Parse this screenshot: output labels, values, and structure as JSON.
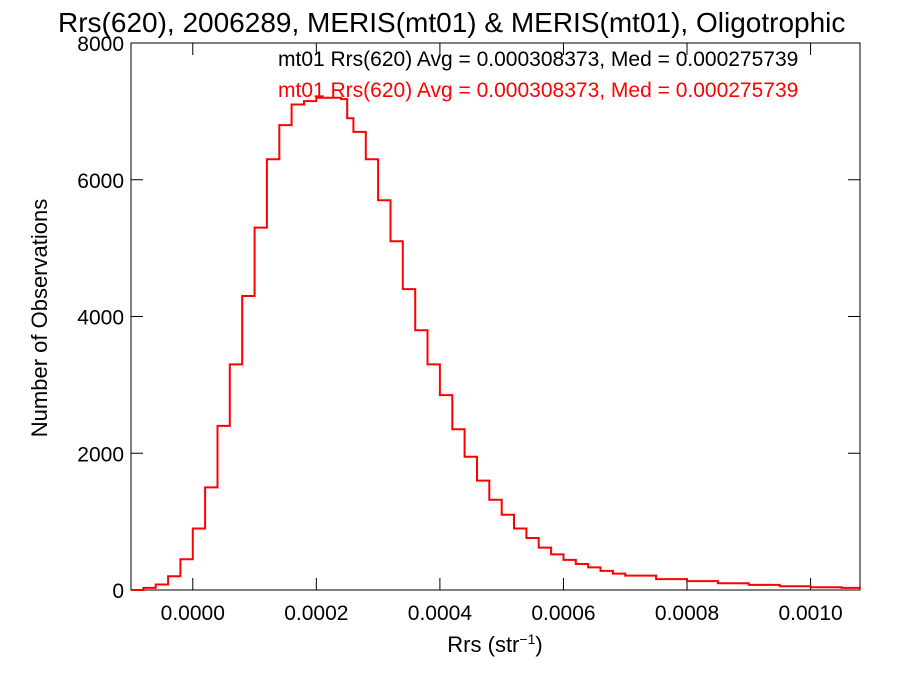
{
  "chart_data": {
    "type": "histogram",
    "title": "Rrs(620), 2006289, MERIS(mt01) & MERIS(mt01), Oligotrophic",
    "xlabel": "Rrs (str",
    "xlabel_sup": "−1",
    "xlabel_close": ")",
    "ylabel": "Number of Observations",
    "xlim": [
      -0.0001,
      0.00108
    ],
    "ylim": [
      0,
      8000
    ],
    "grid": false,
    "xticks": [
      0.0,
      0.0002,
      0.0004,
      0.0006,
      0.0008,
      0.001
    ],
    "xtick_labels": [
      "0.0000",
      "0.0002",
      "0.0004",
      "0.0006",
      "0.0008",
      "0.0010"
    ],
    "yticks": [
      0,
      2000,
      4000,
      6000,
      8000
    ],
    "ytick_labels": [
      "0",
      "2000",
      "4000",
      "6000",
      "8000"
    ],
    "legend_position": "top-right",
    "annotations": [
      {
        "text": "mt01 Rrs(620) Avg = 0.000308373, Med = 0.000275739",
        "color": "#000000"
      },
      {
        "text": "mt01 Rrs(620) Avg = 0.000308373, Med = 0.000275739",
        "color": "#ff0000"
      }
    ],
    "series": [
      {
        "color": "#ff0000",
        "x": [
          -0.0001,
          -8e-05,
          -6e-05,
          -4e-05,
          -2e-05,
          0.0,
          2e-05,
          4e-05,
          6e-05,
          8e-05,
          0.0001,
          0.00012,
          0.00014,
          0.00016,
          0.00018,
          0.0002,
          0.00022,
          0.00024,
          0.00025,
          0.00026,
          0.00028,
          0.0003,
          0.00032,
          0.00034,
          0.00036,
          0.00038,
          0.0004,
          0.00042,
          0.00044,
          0.00046,
          0.00048,
          0.0005,
          0.00052,
          0.00054,
          0.00056,
          0.00058,
          0.0006,
          0.00062,
          0.00064,
          0.00066,
          0.00068,
          0.0007,
          0.00075,
          0.0008,
          0.00085,
          0.0009,
          0.00095,
          0.001,
          0.00105,
          0.00108
        ],
        "y": [
          0,
          30,
          80,
          200,
          450,
          900,
          1500,
          2400,
          3300,
          4300,
          5300,
          6300,
          6800,
          7100,
          7150,
          7200,
          7200,
          7180,
          6900,
          6700,
          6300,
          5700,
          5100,
          4400,
          3800,
          3300,
          2850,
          2350,
          1950,
          1600,
          1320,
          1100,
          900,
          760,
          620,
          520,
          440,
          380,
          330,
          280,
          240,
          210,
          160,
          130,
          100,
          75,
          55,
          40,
          30,
          25
        ]
      }
    ]
  }
}
